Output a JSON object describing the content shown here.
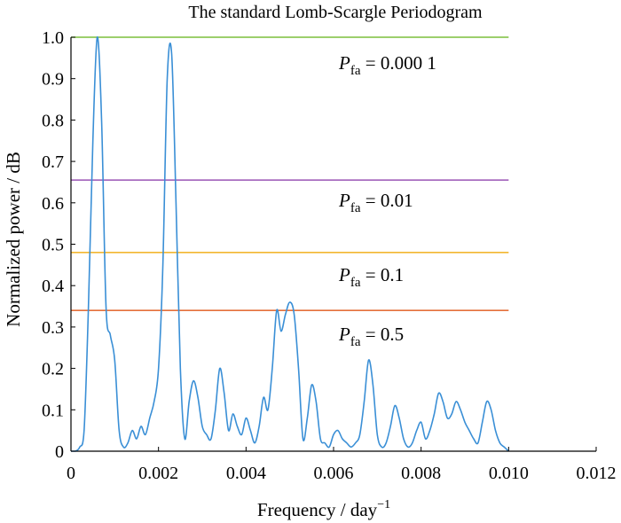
{
  "chart_data": {
    "type": "line",
    "title": "The standard Lomb-Scargle Periodogram",
    "xlabel": "Frequency / day",
    "xlabel_sup": "−1",
    "ylabel": "Normalized power / dB",
    "xlim": [
      0,
      0.012
    ],
    "ylim": [
      0,
      1.0
    ],
    "x_ticks": [
      0,
      0.002,
      0.004,
      0.006,
      0.008,
      0.01,
      0.012
    ],
    "x_tick_labels": [
      "0",
      "0.002",
      "0.004",
      "0.006",
      "0.008",
      "0.010",
      "0.012"
    ],
    "y_ticks": [
      0,
      0.1,
      0.2,
      0.3,
      0.4,
      0.5,
      0.6,
      0.7,
      0.8,
      0.9,
      1.0
    ],
    "y_tick_labels": [
      "0",
      "0.1",
      "0.2",
      "0.3",
      "0.4",
      "0.5",
      "0.6",
      "0.7",
      "0.8",
      "0.9",
      "1.0"
    ],
    "grid": false,
    "series": [
      {
        "color": "#3a8fd6",
        "x": [
          0,
          0.0001,
          0.0002,
          0.0003,
          0.0004,
          0.0005,
          0.0006,
          0.0007,
          0.0008,
          0.0009,
          0.001,
          0.0011,
          0.0012,
          0.0013,
          0.0014,
          0.0015,
          0.0016,
          0.0017,
          0.0018,
          0.0019,
          0.002,
          0.0021,
          0.0022,
          0.0023,
          0.0024,
          0.0025,
          0.0026,
          0.0027,
          0.0028,
          0.0029,
          0.003,
          0.0031,
          0.0032,
          0.0033,
          0.0034,
          0.0035,
          0.0036,
          0.0037,
          0.0038,
          0.0039,
          0.004,
          0.0041,
          0.0042,
          0.0043,
          0.0044,
          0.0045,
          0.0046,
          0.0047,
          0.0048,
          0.0049,
          0.005,
          0.0051,
          0.0052,
          0.0053,
          0.0054,
          0.0055,
          0.0056,
          0.0057,
          0.0058,
          0.0059,
          0.006,
          0.0061,
          0.0062,
          0.0063,
          0.0064,
          0.0065,
          0.0066,
          0.0067,
          0.0068,
          0.0069,
          0.007,
          0.0071,
          0.0072,
          0.0073,
          0.0074,
          0.0075,
          0.0076,
          0.0077,
          0.0078,
          0.0079,
          0.008,
          0.0081,
          0.0082,
          0.0083,
          0.0084,
          0.0085,
          0.0086,
          0.0087,
          0.0088,
          0.0089,
          0.009,
          0.0091,
          0.0092,
          0.0093,
          0.0094,
          0.0095,
          0.0096,
          0.0097,
          0.0098,
          0.0099,
          0.01
        ],
        "y": [
          0.0,
          0.0,
          0.01,
          0.05,
          0.35,
          0.75,
          1.0,
          0.8,
          0.35,
          0.28,
          0.22,
          0.05,
          0.01,
          0.02,
          0.05,
          0.03,
          0.06,
          0.04,
          0.08,
          0.12,
          0.2,
          0.45,
          0.9,
          0.96,
          0.6,
          0.2,
          0.03,
          0.12,
          0.17,
          0.13,
          0.06,
          0.04,
          0.03,
          0.1,
          0.2,
          0.14,
          0.05,
          0.09,
          0.06,
          0.04,
          0.08,
          0.05,
          0.02,
          0.06,
          0.13,
          0.1,
          0.2,
          0.34,
          0.29,
          0.33,
          0.36,
          0.33,
          0.2,
          0.03,
          0.08,
          0.16,
          0.12,
          0.03,
          0.02,
          0.01,
          0.04,
          0.05,
          0.03,
          0.02,
          0.01,
          0.02,
          0.04,
          0.12,
          0.22,
          0.16,
          0.04,
          0.01,
          0.02,
          0.06,
          0.11,
          0.08,
          0.03,
          0.01,
          0.02,
          0.05,
          0.07,
          0.03,
          0.05,
          0.09,
          0.14,
          0.12,
          0.08,
          0.09,
          0.12,
          0.1,
          0.07,
          0.05,
          0.03,
          0.02,
          0.07,
          0.12,
          0.1,
          0.05,
          0.02,
          0.01,
          0.0
        ]
      }
    ],
    "thresholds": [
      {
        "pfa_value": "0.000 1",
        "y": 1.0,
        "color": "#7cbf3c"
      },
      {
        "pfa_value": "0.01",
        "y": 0.655,
        "color": "#9a55b5"
      },
      {
        "pfa_value": "0.1",
        "y": 0.48,
        "color": "#f2b630"
      },
      {
        "pfa_value": "0.5",
        "y": 0.34,
        "color": "#e4703a"
      }
    ],
    "pfa_symbol": "P",
    "pfa_subscript": "fa"
  }
}
